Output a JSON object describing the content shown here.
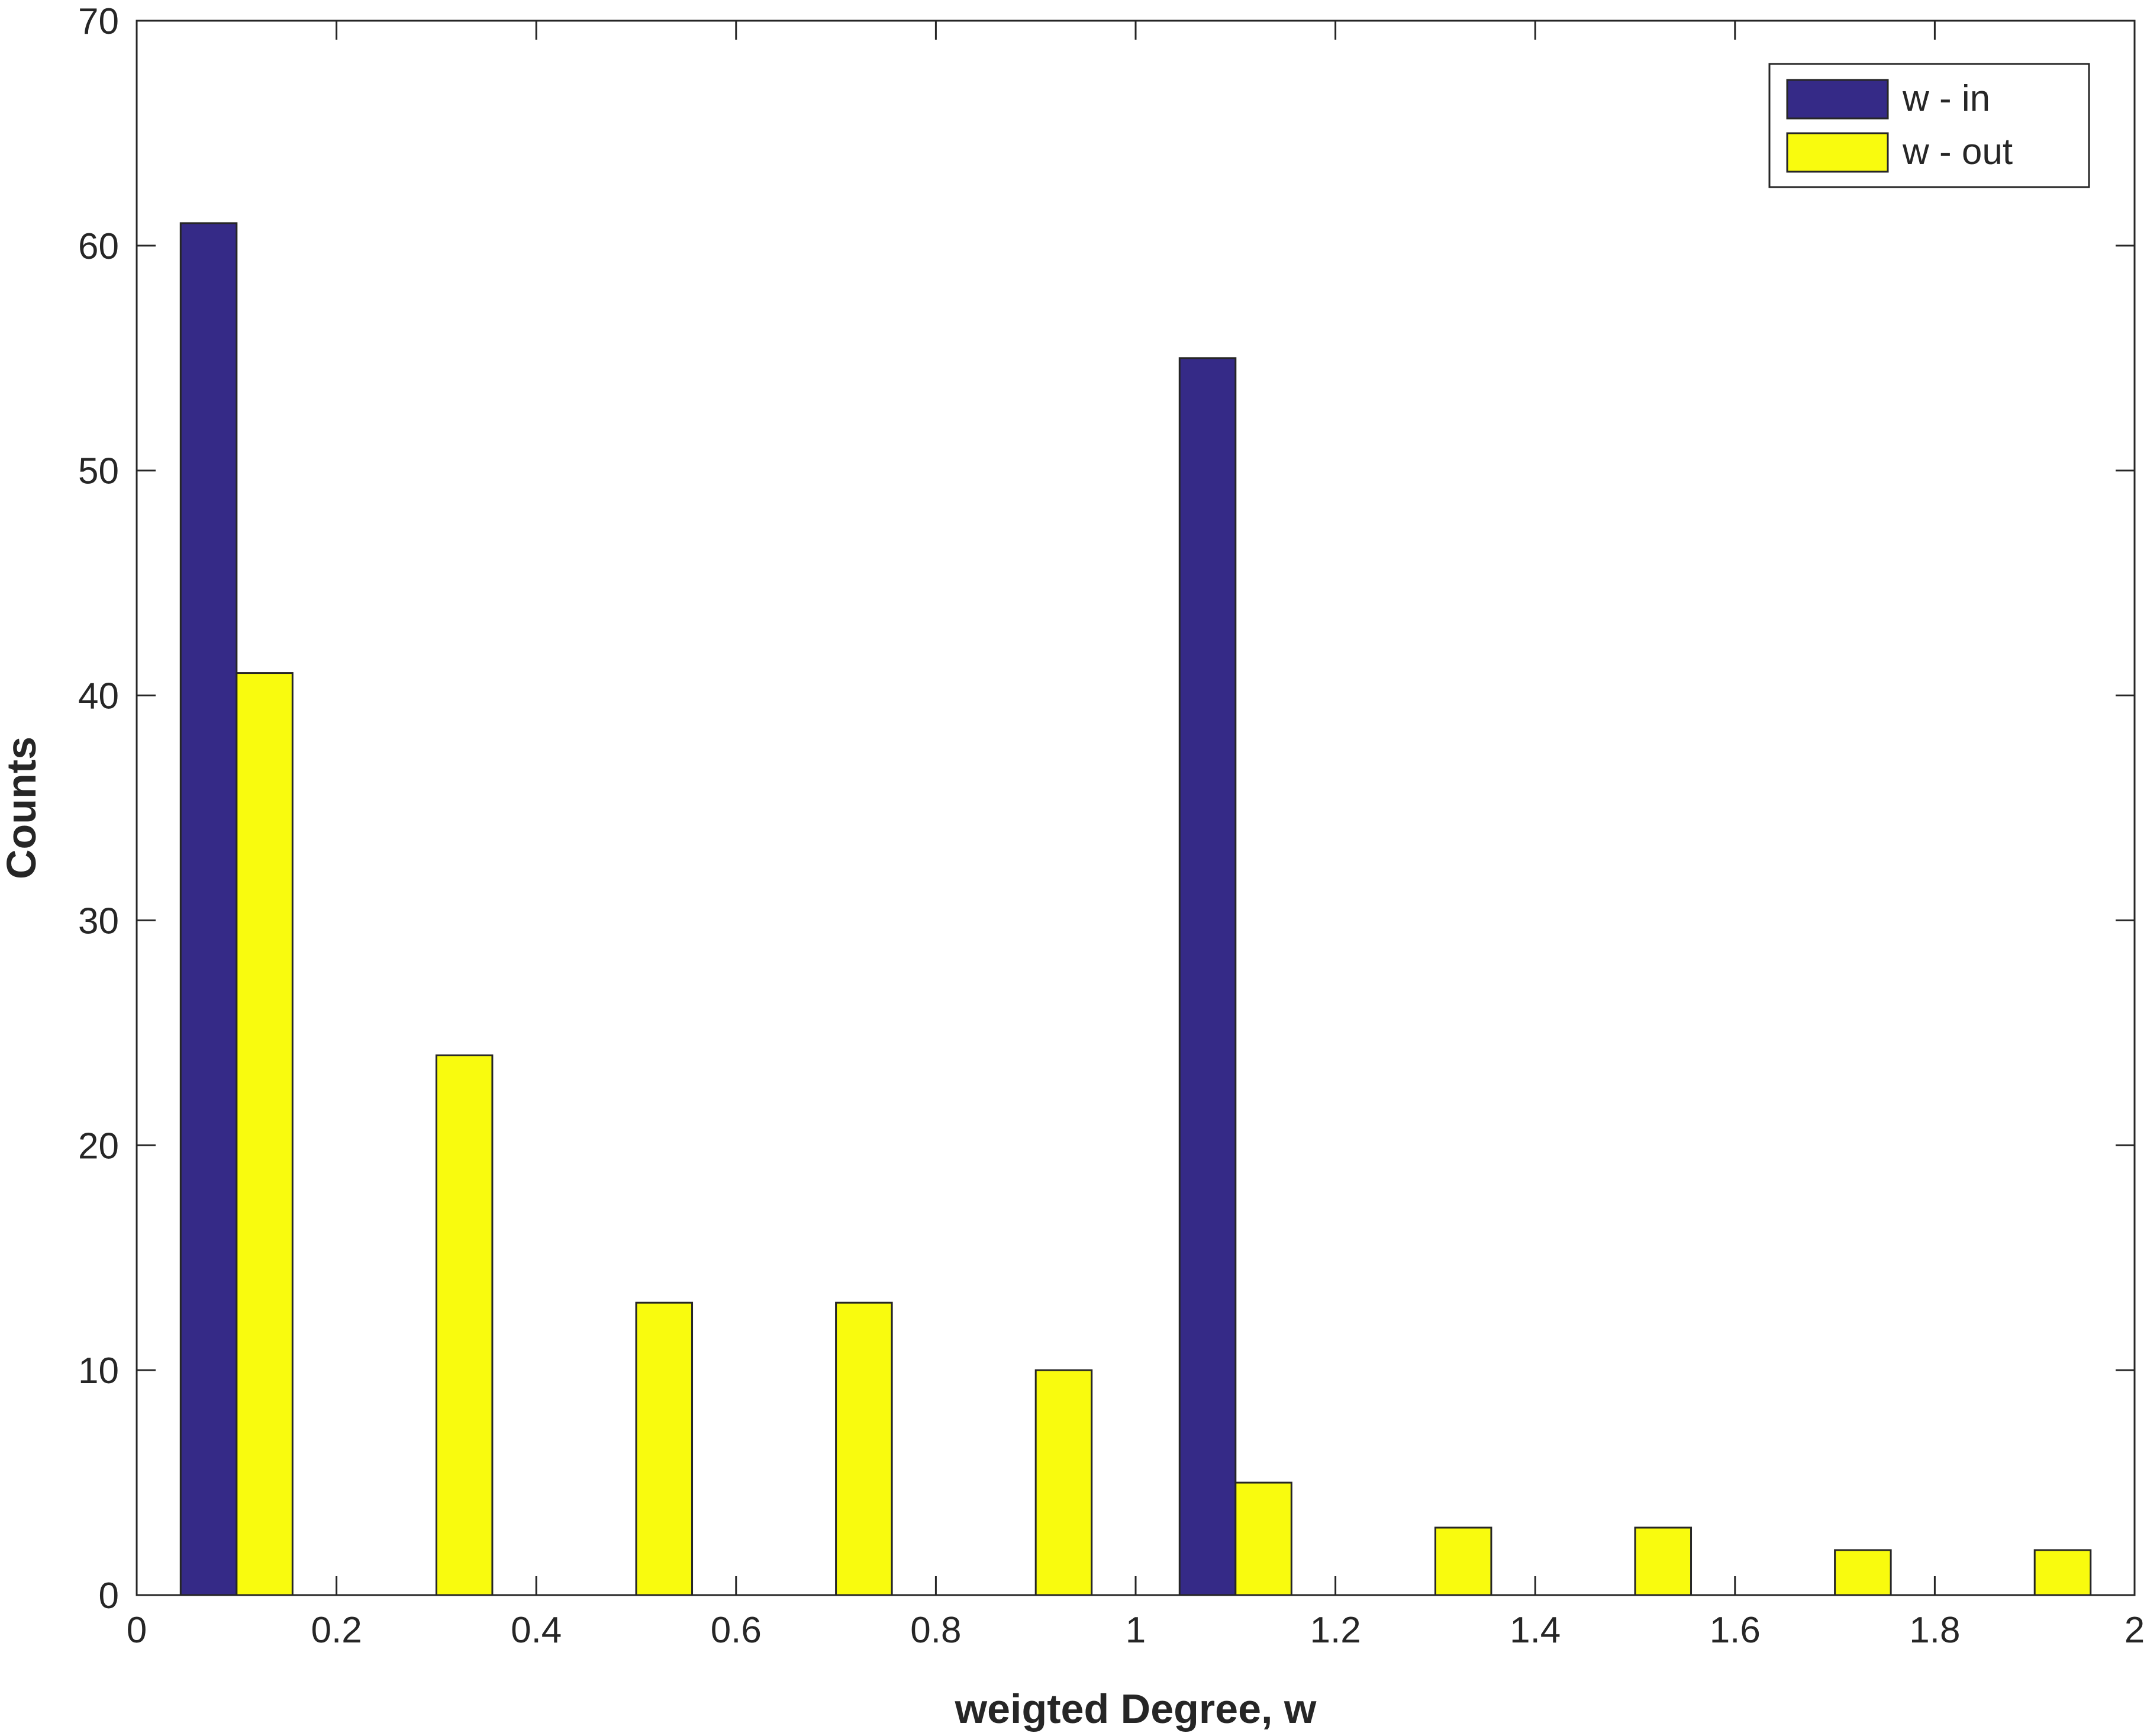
{
  "chart_data": {
    "type": "bar",
    "xlabel": "weigted Degree, w",
    "ylabel": "Counts",
    "xlim": [
      0,
      2
    ],
    "ylim": [
      0,
      70
    ],
    "xticks": [
      "0",
      "0.2",
      "0.4",
      "0.6",
      "0.8",
      "1",
      "1.2",
      "1.4",
      "1.6",
      "1.8",
      "2"
    ],
    "yticks": [
      "0",
      "10",
      "20",
      "30",
      "40",
      "50",
      "60",
      "70"
    ],
    "bin_centers": [
      0.1,
      0.3,
      0.5,
      0.7,
      0.9,
      1.1,
      1.3,
      1.5,
      1.7,
      1.9
    ],
    "series": [
      {
        "name": "w - in",
        "color": "#352a87",
        "values": [
          61,
          0,
          0,
          0,
          0,
          55,
          0,
          0,
          0,
          0
        ]
      },
      {
        "name": "w - out",
        "color": "#f9fb0e",
        "values": [
          41,
          24,
          13,
          13,
          10,
          5,
          3,
          3,
          2,
          2
        ]
      }
    ],
    "grid": false,
    "legend_position": "top-right"
  }
}
